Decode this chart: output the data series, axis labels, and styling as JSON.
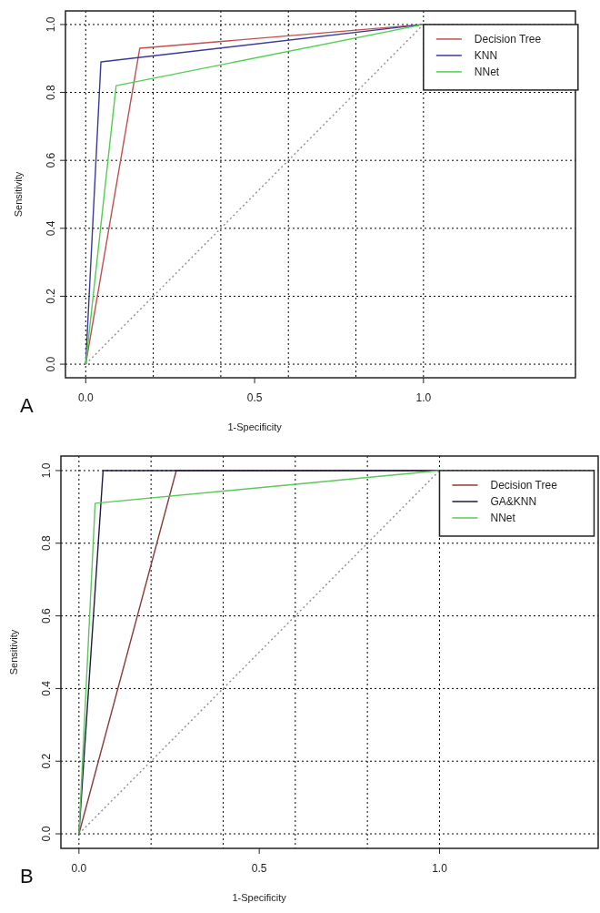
{
  "chart_data": [
    {
      "type": "line",
      "xlabel": "1-Specificity",
      "ylabel": "Sensitivity",
      "annotations": [
        "A"
      ],
      "xlim": [
        -0.06,
        1.45
      ],
      "ylim": [
        -0.04,
        1.04
      ],
      "xticks": [
        {
          "value": 0,
          "label": "0.0"
        },
        {
          "value": 0.5,
          "label": "0.5"
        },
        {
          "value": 1,
          "label": "1.0"
        }
      ],
      "yticks": [
        {
          "value": 0,
          "label": "0.0"
        },
        {
          "value": 0.2,
          "label": "0.2"
        },
        {
          "value": 0.4,
          "label": "0.4"
        },
        {
          "value": 0.6,
          "label": "0.6"
        },
        {
          "value": 0.8,
          "label": "0.8"
        },
        {
          "value": 1,
          "label": "1.0"
        }
      ],
      "grid": "y",
      "legend": "top right",
      "marker": "none",
      "line_style": "solid",
      "ref_lines": [
        {
          "axis": "x",
          "value": 0,
          "color": "#000000",
          "line_style": "dotted"
        },
        {
          "axis": "x",
          "value": 0.2,
          "color": "#000000",
          "line_style": "dotted"
        },
        {
          "axis": "x",
          "value": 0.4,
          "color": "#000000",
          "line_style": "dotted"
        },
        {
          "axis": "x",
          "value": 0.6,
          "color": "#000000",
          "line_style": "dotted"
        },
        {
          "axis": "x",
          "value": 0.8,
          "color": "#000000",
          "line_style": "dotted"
        },
        {
          "axis": "x",
          "value": 1,
          "color": "#000000",
          "line_style": "dotted"
        }
      ],
      "series": [
        {
          "type": "line",
          "color": "#8c8c9c",
          "line_style": "dotted",
          "x": [
            0,
            1
          ],
          "values": [
            0,
            1
          ]
        },
        {
          "name": "Decision Tree",
          "color": "#c0504d",
          "x": [
            0,
            0.16,
            1
          ],
          "values": [
            0,
            0.93,
            1
          ]
        },
        {
          "name": "KNN",
          "color": "#3a3a9a",
          "x": [
            0,
            0.045,
            1
          ],
          "values": [
            0,
            0.89,
            1
          ]
        },
        {
          "name": "NNet",
          "color": "#4fd04f",
          "x": [
            0,
            0.09,
            1
          ],
          "values": [
            0,
            0.82,
            1
          ]
        }
      ]
    },
    {
      "type": "line",
      "xlabel": "1-Specificity",
      "ylabel": "Sensitivity",
      "annotations": [
        "B"
      ],
      "xlim": [
        -0.05,
        1.44
      ],
      "ylim": [
        -0.04,
        1.04
      ],
      "xticks": [
        {
          "value": 0,
          "label": "0.0"
        },
        {
          "value": 0.5,
          "label": "0.5"
        },
        {
          "value": 1,
          "label": "1.0"
        }
      ],
      "yticks": [
        {
          "value": 0,
          "label": "0.0"
        },
        {
          "value": 0.2,
          "label": "0.2"
        },
        {
          "value": 0.4,
          "label": "0.4"
        },
        {
          "value": 0.6,
          "label": "0.6"
        },
        {
          "value": 0.8,
          "label": "0.8"
        },
        {
          "value": 1,
          "label": "1.0"
        }
      ],
      "grid": "y",
      "legend": "top right",
      "marker": "none",
      "line_style": "solid",
      "ref_lines": [
        {
          "axis": "x",
          "value": 0,
          "color": "#000000",
          "line_style": "dotted"
        },
        {
          "axis": "x",
          "value": 0.2,
          "color": "#000000",
          "line_style": "dotted"
        },
        {
          "axis": "x",
          "value": 0.4,
          "color": "#000000",
          "line_style": "dotted"
        },
        {
          "axis": "x",
          "value": 0.6,
          "color": "#000000",
          "line_style": "dotted"
        },
        {
          "axis": "x",
          "value": 0.8,
          "color": "#000000",
          "line_style": "dotted"
        },
        {
          "axis": "x",
          "value": 1,
          "color": "#000000",
          "line_style": "dotted"
        }
      ],
      "series": [
        {
          "type": "line",
          "color": "#8c8c9c",
          "line_style": "dotted",
          "x": [
            0,
            1
          ],
          "values": [
            0,
            1
          ]
        },
        {
          "name": "Decision Tree",
          "color": "#8b3a3a",
          "x": [
            0,
            0.27,
            1
          ],
          "values": [
            0,
            1,
            1
          ]
        },
        {
          "name": "GA&KNN",
          "color": "#1c1c40",
          "x": [
            0,
            0.067,
            1
          ],
          "values": [
            0,
            1,
            1
          ]
        },
        {
          "name": "NNet",
          "color": "#5cc85c",
          "x": [
            0,
            0.045,
            1
          ],
          "values": [
            0,
            0.91,
            1
          ]
        }
      ]
    }
  ]
}
